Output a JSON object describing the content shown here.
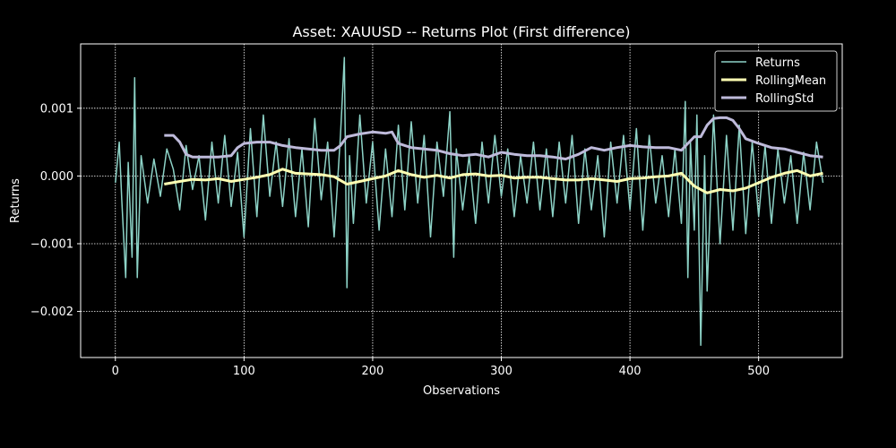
{
  "chart_data": {
    "type": "line",
    "title": "Asset: XAUUSD -- Returns Plot (First difference)",
    "xlabel": "Observations",
    "ylabel": "Returns",
    "xlim": [
      -27,
      565
    ],
    "ylim": [
      -0.00268,
      0.00195
    ],
    "xticks": [
      0,
      100,
      200,
      300,
      400,
      500
    ],
    "xtick_labels": [
      "0",
      "100",
      "200",
      "300",
      "400",
      "500"
    ],
    "yticks": [
      0.001,
      0.0,
      -0.001,
      -0.002
    ],
    "ytick_labels": [
      "0.001",
      "0.000",
      "−0.001",
      "−0.002"
    ],
    "grid": true,
    "legend_position": "top-right",
    "background": "#000000",
    "series": [
      {
        "name": "Returns",
        "color": "#8dd3c7",
        "x": [
          0,
          3,
          5,
          8,
          10,
          13,
          15,
          17,
          20,
          25,
          30,
          35,
          40,
          45,
          50,
          55,
          60,
          65,
          70,
          75,
          80,
          85,
          90,
          95,
          100,
          105,
          110,
          115,
          120,
          125,
          130,
          135,
          140,
          145,
          150,
          155,
          160,
          165,
          170,
          175,
          178,
          180,
          182,
          185,
          190,
          195,
          200,
          205,
          210,
          215,
          220,
          225,
          230,
          235,
          240,
          245,
          250,
          255,
          260,
          263,
          265,
          270,
          275,
          280,
          285,
          290,
          295,
          300,
          305,
          310,
          315,
          320,
          325,
          330,
          335,
          340,
          345,
          350,
          355,
          360,
          365,
          370,
          375,
          380,
          385,
          390,
          395,
          400,
          405,
          410,
          415,
          420,
          425,
          430,
          435,
          440,
          443,
          445,
          447,
          450,
          452,
          455,
          458,
          460,
          465,
          470,
          475,
          480,
          485,
          490,
          495,
          500,
          505,
          510,
          515,
          520,
          525,
          530,
          535,
          540,
          545,
          550
        ],
        "y": [
          -0.0001,
          0.0005,
          -0.00035,
          -0.0015,
          0.0002,
          -0.0012,
          0.00145,
          -0.0015,
          0.0003,
          -0.0004,
          0.00025,
          -0.0003,
          0.0004,
          0.0001,
          -0.0005,
          0.00045,
          -0.0002,
          0.0003,
          -0.00065,
          0.0005,
          -0.0004,
          0.0006,
          -0.00045,
          0.00035,
          -0.0009,
          0.0007,
          -0.0006,
          0.0009,
          -0.0003,
          0.0005,
          -0.00045,
          0.00055,
          -0.0006,
          0.0004,
          -0.00075,
          0.00085,
          -0.00035,
          0.0005,
          -0.0009,
          0.0006,
          0.00175,
          -0.00165,
          0.0003,
          -0.0007,
          0.0009,
          -0.0004,
          0.0005,
          -0.0008,
          0.0004,
          -0.0006,
          0.00075,
          -0.0005,
          0.0008,
          -0.0004,
          0.0006,
          -0.0009,
          0.0005,
          -0.0003,
          0.00095,
          -0.0012,
          0.0004,
          -0.0005,
          0.0003,
          -0.0007,
          0.0005,
          -0.0004,
          0.0006,
          -0.0003,
          0.0004,
          -0.0006,
          0.0003,
          -0.0004,
          0.0005,
          -0.0005,
          0.0004,
          -0.0006,
          0.0005,
          -0.0004,
          0.0006,
          -0.0007,
          0.0004,
          -0.0005,
          0.0003,
          -0.0009,
          0.0005,
          -0.0004,
          0.0006,
          -0.0005,
          0.0007,
          -0.0008,
          0.0006,
          -0.0004,
          0.0003,
          -0.0006,
          0.0004,
          -0.0007,
          0.0011,
          -0.0015,
          0.0005,
          -0.0008,
          0.0009,
          -0.0025,
          0.0003,
          -0.0017,
          0.0009,
          -0.001,
          0.0006,
          -0.0008,
          0.00075,
          -0.00085,
          0.0005,
          -0.0006,
          0.00045,
          -0.0007,
          0.0004,
          -0.0004,
          0.0003,
          -0.0007,
          0.00035,
          -0.0005,
          0.0005,
          -0.0001
        ]
      },
      {
        "name": "RollingMean",
        "color": "#ffffb3",
        "x": [
          38,
          50,
          60,
          70,
          80,
          90,
          100,
          110,
          120,
          130,
          140,
          150,
          160,
          170,
          180,
          190,
          200,
          210,
          220,
          230,
          240,
          250,
          260,
          270,
          280,
          290,
          300,
          310,
          320,
          330,
          340,
          350,
          360,
          370,
          380,
          390,
          400,
          410,
          420,
          430,
          440,
          450,
          460,
          470,
          480,
          490,
          500,
          510,
          520,
          530,
          540,
          550
        ],
        "y": [
          -0.00012,
          -8e-05,
          -5e-05,
          -6e-05,
          -4e-05,
          -8e-05,
          -5e-05,
          -2e-05,
          2e-05,
          0.0001,
          4e-05,
          3e-05,
          2e-05,
          -1e-05,
          -0.00012,
          -8e-05,
          -4e-05,
          0.0,
          8e-05,
          2e-05,
          -2e-05,
          1e-05,
          -3e-05,
          2e-05,
          3e-05,
          0.0,
          1e-05,
          -3e-05,
          -2e-05,
          -2e-05,
          -4e-05,
          -6e-05,
          -6e-05,
          -4e-05,
          -6e-05,
          -8e-05,
          -4e-05,
          -3e-05,
          -1e-05,
          0.0,
          4e-05,
          -0.00015,
          -0.00025,
          -0.0002,
          -0.00022,
          -0.00018,
          -0.0001,
          -2e-05,
          4e-05,
          8e-05,
          0.0,
          4e-05
        ]
      },
      {
        "name": "RollingStd",
        "color": "#bebada",
        "x": [
          38,
          45,
          50,
          55,
          60,
          70,
          80,
          90,
          95,
          100,
          110,
          120,
          130,
          140,
          150,
          160,
          170,
          175,
          180,
          190,
          200,
          210,
          215,
          220,
          225,
          230,
          240,
          250,
          260,
          270,
          280,
          290,
          300,
          310,
          320,
          330,
          340,
          350,
          360,
          370,
          380,
          390,
          400,
          410,
          420,
          430,
          440,
          450,
          455,
          460,
          465,
          470,
          475,
          480,
          485,
          490,
          500,
          510,
          520,
          530,
          540,
          550
        ],
        "y": [
          0.0006,
          0.0006,
          0.0005,
          0.00032,
          0.00028,
          0.00028,
          0.00028,
          0.0003,
          0.00042,
          0.00048,
          0.0005,
          0.0005,
          0.00045,
          0.00042,
          0.0004,
          0.00038,
          0.00038,
          0.00045,
          0.00058,
          0.00062,
          0.00065,
          0.00063,
          0.00065,
          0.00048,
          0.00045,
          0.00042,
          0.0004,
          0.00038,
          0.00033,
          0.0003,
          0.00032,
          0.00028,
          0.00035,
          0.00032,
          0.0003,
          0.0003,
          0.00028,
          0.00025,
          0.00032,
          0.00042,
          0.00038,
          0.00042,
          0.00045,
          0.00043,
          0.00042,
          0.00042,
          0.00038,
          0.00058,
          0.00058,
          0.00075,
          0.00085,
          0.00086,
          0.00086,
          0.00082,
          0.0007,
          0.00055,
          0.00048,
          0.00042,
          0.0004,
          0.00035,
          0.0003,
          0.00028
        ]
      }
    ]
  }
}
